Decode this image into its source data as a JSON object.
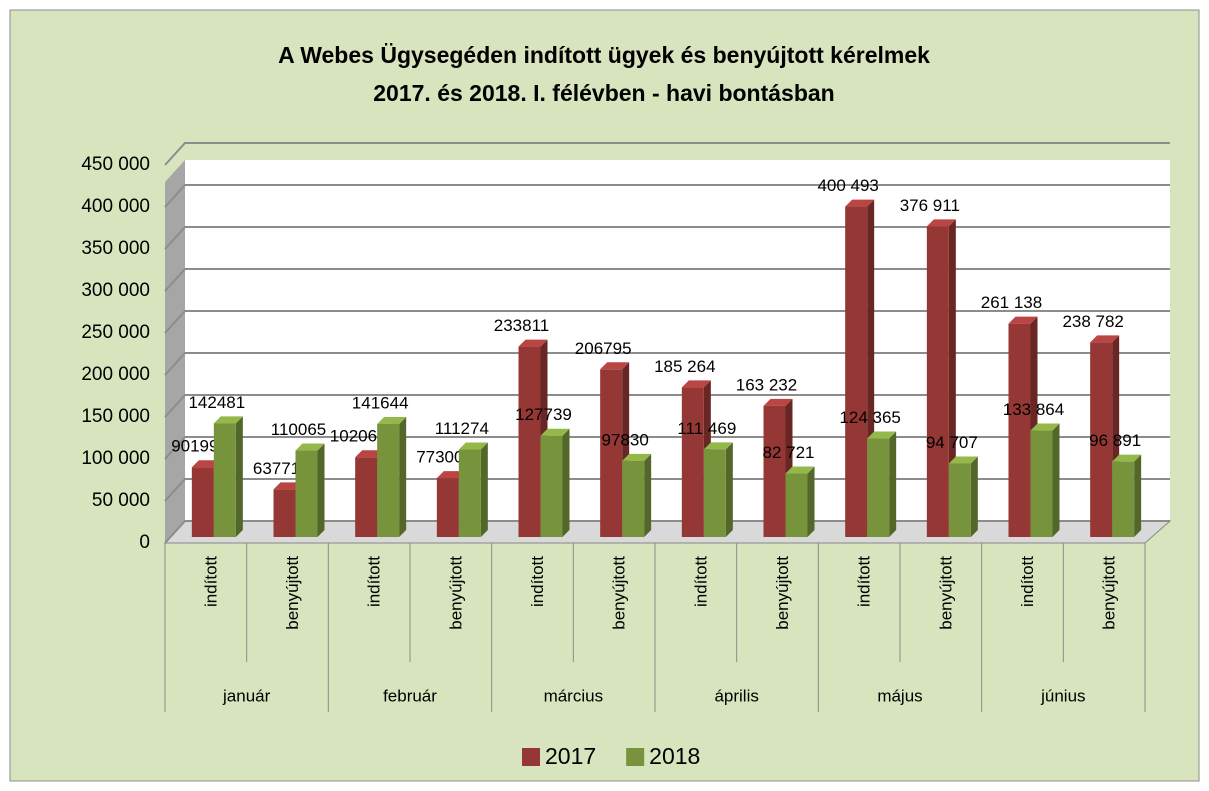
{
  "chart_data": {
    "type": "bar",
    "title": [
      "A Webes Ügysegéden indított ügyek és benyújtott kérelmek",
      "2017. és 2018. I. félévben - havi bontásban"
    ],
    "categories": [
      "indított",
      "benyújtott",
      "indított",
      "benyújtott",
      "indított",
      "benyújtott",
      "indított",
      "benyújtott",
      "indított",
      "benyújtott",
      "indított",
      "benyújtott"
    ],
    "months": [
      "január",
      "február",
      "március",
      "április",
      "május",
      "június"
    ],
    "series": [
      {
        "name": "2017",
        "color": "#953735",
        "values": [
          90199,
          63771,
          102066,
          77300,
          233811,
          206795,
          185264,
          163232,
          400493,
          376911,
          261138,
          238782
        ],
        "value_labels": [
          "90199",
          "63771",
          "102066",
          "77300",
          "233811",
          "206795",
          "185 264",
          "163 232",
          "400 493",
          "376 911",
          "261 138",
          "238 782"
        ]
      },
      {
        "name": "2018",
        "color": "#77933c",
        "values": [
          142481,
          110065,
          141644,
          111274,
          127739,
          97830,
          111469,
          82721,
          124365,
          94707,
          133864,
          96891
        ],
        "value_labels": [
          "142481",
          "110065",
          "141644",
          "111274",
          "127739",
          "97830",
          "111 469",
          "82 721",
          "124 365",
          "94 707",
          "133 864",
          "96 891"
        ]
      }
    ],
    "ylim": [
      0,
      450000
    ],
    "yticks": [
      0,
      {
        "value": 50000,
        "label": "50 000"
      },
      {
        "value": 100000,
        "label": "100 000"
      },
      {
        "value": 150000,
        "label": "150 000"
      },
      {
        "value": 200000,
        "label": "200 000"
      },
      {
        "value": 250000,
        "label": "250 000"
      },
      {
        "value": 300000,
        "label": "300 000"
      },
      {
        "value": 350000,
        "label": "350 000"
      },
      {
        "value": 400000,
        "label": "400 000"
      },
      {
        "value": 450000,
        "label": "450 000"
      }
    ],
    "grid": true,
    "legend": "bottom"
  }
}
